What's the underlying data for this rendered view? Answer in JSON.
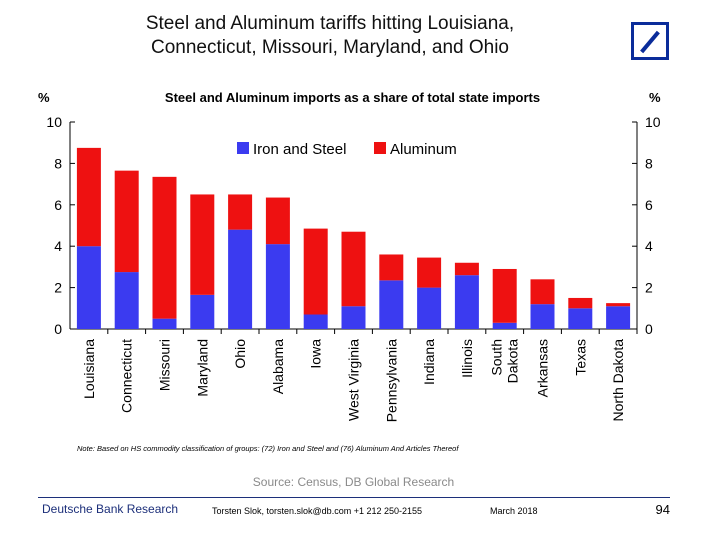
{
  "title_line1": "Steel and Aluminum tariffs hitting Louisiana,",
  "title_line2": "Connecticut, Missouri, Maryland, and Ohio",
  "unit_left": "%",
  "unit_right": "%",
  "colors": {
    "iron_steel": "#3b3bf0",
    "aluminum": "#ee1111",
    "brand": "#0a2c9a"
  },
  "chart_data": {
    "type": "bar",
    "stacked": true,
    "title": "Steel and Aluminum imports as a share of total state imports",
    "ylabel": "%",
    "ylim": [
      0,
      10
    ],
    "yticks": [
      0,
      2,
      4,
      6,
      8,
      10
    ],
    "categories": [
      "Louisiana",
      "Connecticut",
      "Missouri",
      "Maryland",
      "Ohio",
      "Alabama",
      "Iowa",
      "West Virginia",
      "Pennsylvania",
      "Indiana",
      "Illinois",
      "South Dakota",
      "Arkansas",
      "Texas",
      "North Dakota"
    ],
    "series": [
      {
        "name": "Iron and Steel",
        "values": [
          4.0,
          2.75,
          0.5,
          1.65,
          4.8,
          4.1,
          0.7,
          1.1,
          2.35,
          2.0,
          2.6,
          0.3,
          1.2,
          1.0,
          1.1
        ]
      },
      {
        "name": "Aluminum",
        "values": [
          4.75,
          4.9,
          6.85,
          4.85,
          1.7,
          2.25,
          4.15,
          3.6,
          1.25,
          1.45,
          0.6,
          2.6,
          1.2,
          0.5,
          0.15
        ]
      }
    ],
    "legend": "top-center"
  },
  "note": "Note: Based on HS commodity classification of groups: (72) Iron and Steel and (76) Aluminum And Articles Thereof",
  "source": "Source: Census, DB Global Research",
  "footer": {
    "brand": "Deutsche Bank Research",
    "author": "Torsten Slok, torsten.slok@db.com  +1 212 250-2155",
    "date": "March 2018",
    "page": "94"
  }
}
